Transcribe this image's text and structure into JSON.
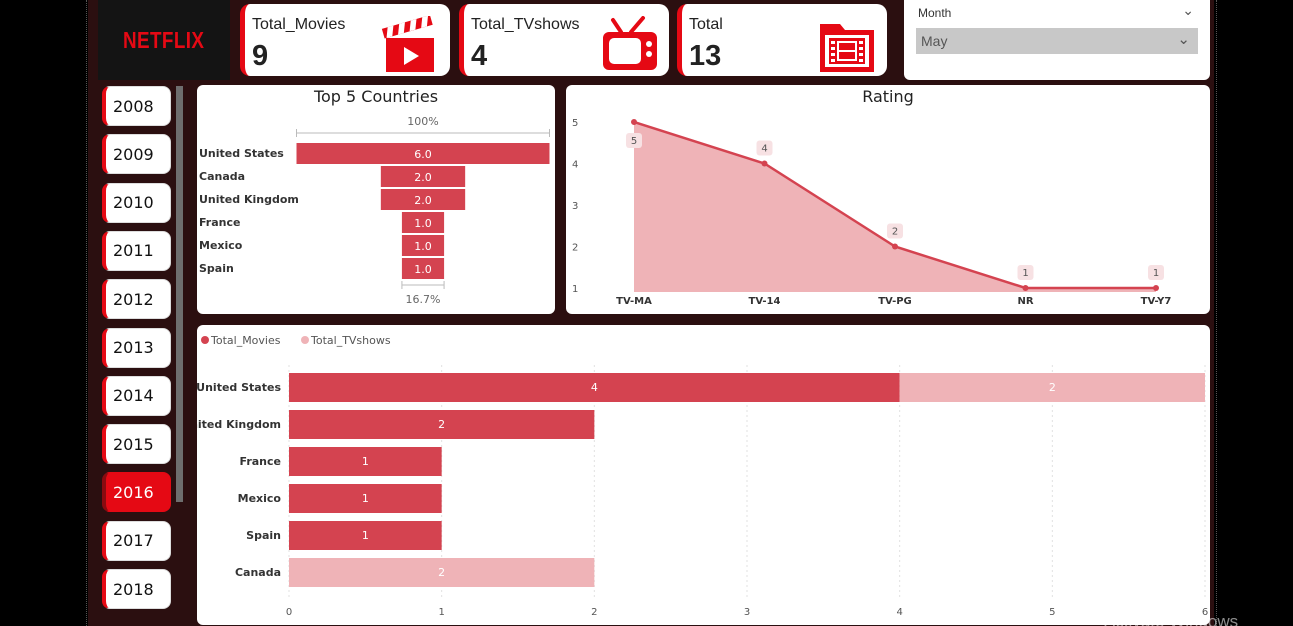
{
  "brand": {
    "logo_text": "NETFLIX",
    "accent": "#e50914"
  },
  "kpis": [
    {
      "label": "Total_Movies",
      "value": "9",
      "icon": "clapperboard-icon"
    },
    {
      "label": "Total_TVshows",
      "value": "4",
      "icon": "tv-icon"
    },
    {
      "label": "Total",
      "value": "13",
      "icon": "film-folder-icon"
    }
  ],
  "month_slicer": {
    "label": "Month",
    "selected": "May"
  },
  "years": {
    "items": [
      "2008",
      "2009",
      "2010",
      "2011",
      "2012",
      "2013",
      "2014",
      "2015",
      "2016",
      "2017",
      "2018"
    ],
    "selected": "2016"
  },
  "chart_data": [
    {
      "type": "bar",
      "subtype": "funnel",
      "title": "Top 5 Countries",
      "categories": [
        "United States",
        "Canada",
        "United Kingdom",
        "France",
        "Mexico",
        "Spain"
      ],
      "values": [
        6.0,
        2.0,
        2.0,
        1.0,
        1.0,
        1.0
      ],
      "value_labels": [
        "6.0",
        "2.0",
        "2.0",
        "1.0",
        "1.0",
        "1.0"
      ],
      "top_percent_label": "100%",
      "bottom_percent_label": "16.7%",
      "color": "#d44350"
    },
    {
      "type": "area",
      "title": "Rating",
      "categories": [
        "TV-MA",
        "TV-14",
        "TV-PG",
        "NR",
        "TV-Y7"
      ],
      "values": [
        5,
        4,
        2,
        1,
        1
      ],
      "y_ticks": [
        "1",
        "2",
        "3",
        "4",
        "5"
      ],
      "ylim": [
        1,
        5
      ],
      "line_color": "#d44350",
      "fill_color": "#efb3b7"
    },
    {
      "type": "bar",
      "orientation": "horizontal",
      "stacked": true,
      "legend_position": "top-left",
      "categories": [
        "United States",
        "United Kingdom",
        "France",
        "Mexico",
        "Spain",
        "Canada"
      ],
      "series": [
        {
          "name": "Total_Movies",
          "values": [
            4,
            2,
            1,
            1,
            1,
            0
          ],
          "color": "#d44350"
        },
        {
          "name": "Total_TVshows",
          "values": [
            2,
            0,
            0,
            0,
            0,
            2
          ],
          "color": "#efb3b7"
        }
      ],
      "x_ticks": [
        "0",
        "1",
        "2",
        "3",
        "4",
        "5",
        "6"
      ],
      "xlim": [
        0,
        6
      ],
      "grid": true
    }
  ],
  "watermark": "Activate Windows"
}
